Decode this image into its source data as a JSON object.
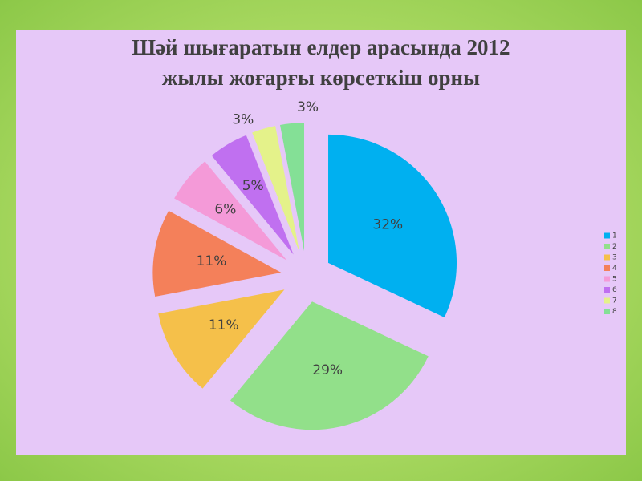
{
  "chart_data": {
    "type": "pie",
    "title": "Шәй шығаратын елдер арасында 2012 жылы жоғарғы көрсеткіш орны",
    "categories": [
      "1",
      "2",
      "3",
      "4",
      "5",
      "6",
      "7",
      "8"
    ],
    "values": [
      32,
      29,
      11,
      11,
      6,
      5,
      3,
      3
    ],
    "value_labels": [
      "32%",
      "29%",
      "11%",
      "11%",
      "6%",
      "5%",
      "3%",
      "3%"
    ],
    "colors": [
      "#00b0f0",
      "#92e08a",
      "#f5c04a",
      "#f4805a",
      "#f49ad8",
      "#c070f0",
      "#e4f28a",
      "#84e096"
    ],
    "legend": "right"
  }
}
